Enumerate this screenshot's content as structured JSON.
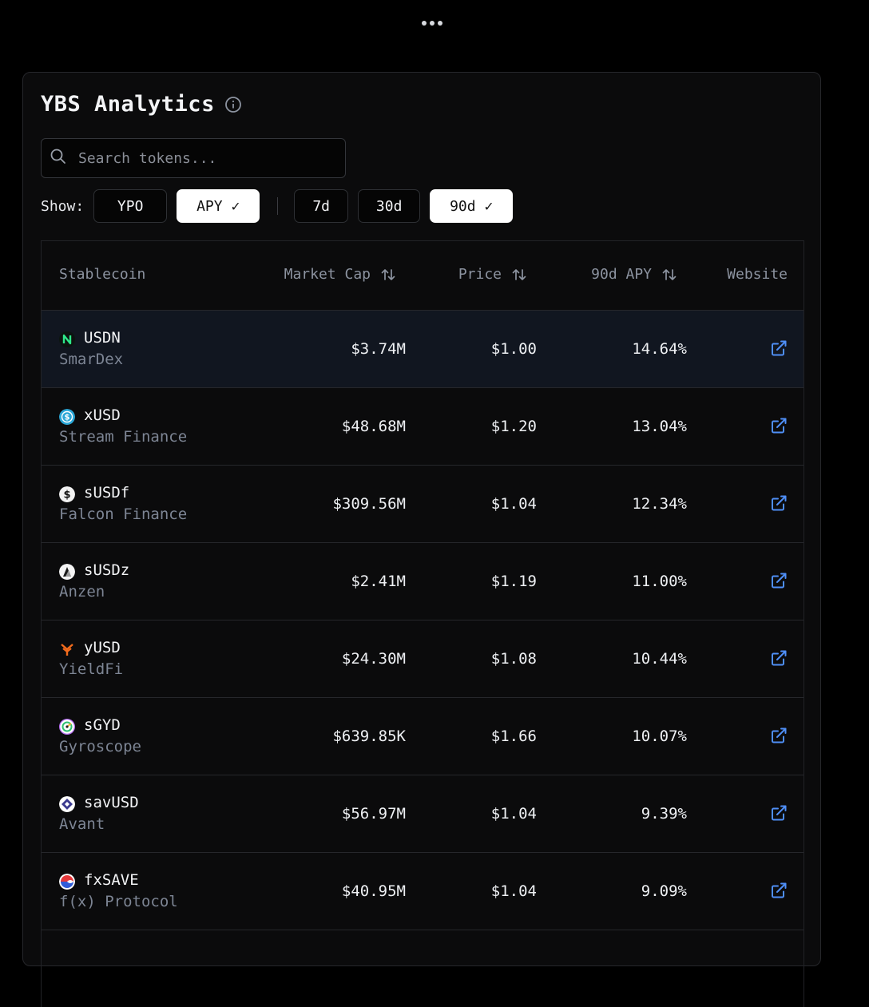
{
  "title": "YBS Analytics",
  "search": {
    "placeholder": "Search tokens..."
  },
  "filters": {
    "show_label": "Show:",
    "metric_buttons": [
      {
        "label": "YPO",
        "active": false
      },
      {
        "label": "APY",
        "active": true
      }
    ],
    "period_buttons": [
      {
        "label": "7d",
        "active": false
      },
      {
        "label": "30d",
        "active": false
      },
      {
        "label": "90d",
        "active": true
      }
    ],
    "check_mark": "✓"
  },
  "table": {
    "columns": [
      "Stablecoin",
      "Market Cap",
      "Price",
      "90d APY",
      "Website"
    ],
    "rows": [
      {
        "symbol": "USDN",
        "issuer": "SmarDex",
        "market_cap": "$3.74M",
        "price": "$1.00",
        "apy": "14.64%",
        "icon": "smardex-icon",
        "highlight": true
      },
      {
        "symbol": "xUSD",
        "issuer": "Stream Finance",
        "market_cap": "$48.68M",
        "price": "$1.20",
        "apy": "13.04%",
        "icon": "stream-finance-icon"
      },
      {
        "symbol": "sUSDf",
        "issuer": "Falcon Finance",
        "market_cap": "$309.56M",
        "price": "$1.04",
        "apy": "12.34%",
        "icon": "falcon-finance-icon"
      },
      {
        "symbol": "sUSDz",
        "issuer": "Anzen",
        "market_cap": "$2.41M",
        "price": "$1.19",
        "apy": "11.00%",
        "icon": "anzen-icon"
      },
      {
        "symbol": "yUSD",
        "issuer": "YieldFi",
        "market_cap": "$24.30M",
        "price": "$1.08",
        "apy": "10.44%",
        "icon": "yieldfi-icon"
      },
      {
        "symbol": "sGYD",
        "issuer": "Gyroscope",
        "market_cap": "$639.85K",
        "price": "$1.66",
        "apy": "10.07%",
        "icon": "gyroscope-icon"
      },
      {
        "symbol": "savUSD",
        "issuer": "Avant",
        "market_cap": "$56.97M",
        "price": "$1.04",
        "apy": "9.39%",
        "icon": "avant-icon"
      },
      {
        "symbol": "fxSAVE",
        "issuer": "f(x) Protocol",
        "market_cap": "$40.95M",
        "price": "$1.04",
        "apy": "9.09%",
        "icon": "fx-protocol-icon"
      }
    ]
  },
  "colors": {
    "background": "#000000",
    "panel": "#0b0b0c",
    "highlight_row": "#111620",
    "link_icon": "#4f8ff7",
    "muted_text": "#7d8594"
  }
}
